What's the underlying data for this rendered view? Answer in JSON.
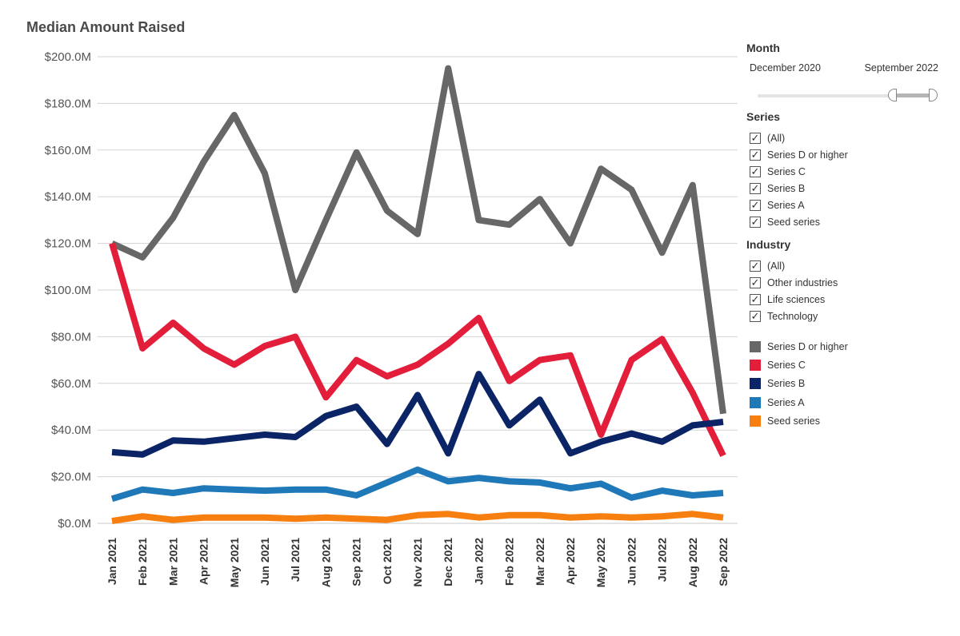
{
  "title": "Median Amount Raised",
  "filters": {
    "month": {
      "heading": "Month",
      "start_label": "December 2020",
      "end_label": "September 2022"
    },
    "series": {
      "heading": "Series",
      "items": [
        "(All)",
        "Series D or higher",
        "Series C",
        "Series B",
        "Series A",
        "Seed series"
      ]
    },
    "industry": {
      "heading": "Industry",
      "items": [
        "(All)",
        "Other industries",
        "Life sciences",
        "Technology"
      ]
    }
  },
  "chart_data": {
    "type": "line",
    "title": "Median Amount Raised",
    "categories": [
      "Jan 2021",
      "Feb 2021",
      "Mar 2021",
      "Apr 2021",
      "May 2021",
      "Jun 2021",
      "Jul 2021",
      "Aug 2021",
      "Sep 2021",
      "Oct 2021",
      "Nov 2021",
      "Dec 2021",
      "Jan 2022",
      "Feb 2022",
      "Mar 2022",
      "Apr 2022",
      "May 2022",
      "Jun 2022",
      "Jul 2022",
      "Aug 2022",
      "Sep 2022"
    ],
    "ylim": [
      0,
      200
    ],
    "y_ticks": [
      "$0.0M",
      "$20.0M",
      "$40.0M",
      "$60.0M",
      "$80.0M",
      "$100.0M",
      "$120.0M",
      "$140.0M",
      "$160.0M",
      "$180.0M",
      "$200.0M"
    ],
    "grid": true,
    "legend_position": "right",
    "series": [
      {
        "name": "Series D or higher",
        "color": "#676767",
        "values": [
          120,
          114,
          131,
          155,
          175,
          150,
          100,
          130,
          159,
          134,
          124,
          195,
          130,
          128,
          139,
          120,
          152,
          143,
          116,
          145,
          47
        ]
      },
      {
        "name": "Series C",
        "color": "#e31e3b",
        "values": [
          120,
          75,
          86,
          75,
          68,
          76,
          80,
          54,
          70,
          63,
          68,
          77,
          88,
          61,
          70,
          72,
          38,
          70,
          79,
          56,
          29
        ]
      },
      {
        "name": "Series B",
        "color": "#0a2466",
        "values": [
          30.5,
          29.5,
          35.5,
          35,
          36.5,
          38,
          37,
          46,
          50,
          34,
          55,
          30,
          64,
          42,
          53,
          30,
          35,
          38.5,
          35,
          42,
          43.5
        ]
      },
      {
        "name": "Series A",
        "color": "#1f78b8",
        "values": [
          10.5,
          14.5,
          13,
          15,
          14.5,
          14,
          14.5,
          14.5,
          12,
          17.5,
          23,
          18,
          19.5,
          18,
          17.5,
          15,
          17,
          11,
          14,
          12,
          13
        ]
      },
      {
        "name": "Seed series",
        "color": "#f77f10",
        "values": [
          1,
          3,
          1.5,
          2.5,
          2.5,
          2.5,
          2,
          2.5,
          2,
          1.5,
          3.5,
          4,
          2.5,
          3.5,
          3.5,
          2.5,
          3,
          2.5,
          3,
          4,
          2.5
        ]
      }
    ]
  }
}
